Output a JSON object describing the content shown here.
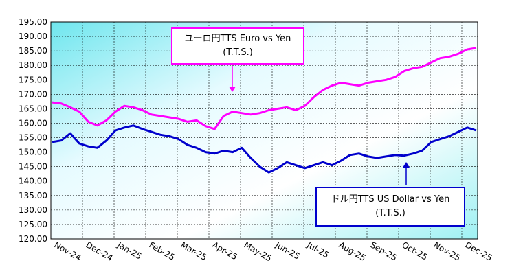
{
  "chart_data": {
    "type": "line",
    "title": "",
    "xlabel": "",
    "ylabel": "",
    "ylim": [
      120,
      195
    ],
    "yticks": [
      "195.00",
      "190.00",
      "185.00",
      "180.00",
      "175.00",
      "170.00",
      "165.00",
      "160.00",
      "155.00",
      "150.00",
      "145.00",
      "140.00",
      "135.00",
      "130.00",
      "125.00",
      "120.00"
    ],
    "xticks": [
      "Nov-24",
      "Dec-24",
      "Jan-25",
      "Feb-25",
      "Mar-25",
      "Apr-25",
      "May-25",
      "Jun-25",
      "Jul-25",
      "Aug-25",
      "Sep-25",
      "Oct-25",
      "Nov-25",
      "Dec-25"
    ],
    "grid": true,
    "series": [
      {
        "name": "ユーロ円TTS Euro vs Yen (T.T.S.)",
        "color": "#ff00ff",
        "values": [
          167.2,
          166.8,
          165.5,
          164.0,
          160.5,
          159.2,
          161.0,
          164.0,
          166.0,
          165.5,
          164.5,
          163.0,
          162.5,
          162.0,
          161.5,
          160.5,
          161.0,
          159.0,
          158.0,
          162.5,
          164.0,
          163.5,
          163.0,
          163.5,
          164.5,
          165.0,
          165.5,
          164.5,
          166.0,
          169.0,
          171.5,
          173.0,
          174.0,
          173.5,
          173.0,
          174.0,
          174.5,
          175.0,
          176.0,
          178.0,
          179.0,
          179.5,
          181.0,
          182.5,
          183.0,
          184.0,
          185.5,
          186.0
        ]
      },
      {
        "name": "ドル円TTS  US Dollar vs Yen (T.T.S.)",
        "color": "#0000cc",
        "values": [
          153.5,
          154.0,
          156.5,
          153.0,
          152.0,
          151.5,
          154.0,
          157.5,
          158.5,
          159.2,
          158.0,
          157.0,
          156.0,
          155.5,
          154.5,
          152.5,
          151.5,
          150.0,
          149.5,
          150.5,
          150.0,
          151.5,
          148.0,
          145.0,
          143.0,
          144.5,
          146.5,
          145.5,
          144.5,
          145.5,
          146.5,
          145.5,
          147.0,
          149.0,
          149.5,
          148.5,
          148.0,
          148.5,
          149.0,
          148.8,
          149.5,
          150.5,
          153.5,
          154.5,
          155.5,
          157.0,
          158.5,
          157.5
        ]
      }
    ]
  },
  "callouts": {
    "euro_line1": "ユーロ円TTS Euro vs Yen",
    "euro_line2": "(T.T.S.)",
    "usd_line1": "ドル円TTS  US Dollar vs Yen",
    "usd_line2": "(T.T.S.)"
  }
}
